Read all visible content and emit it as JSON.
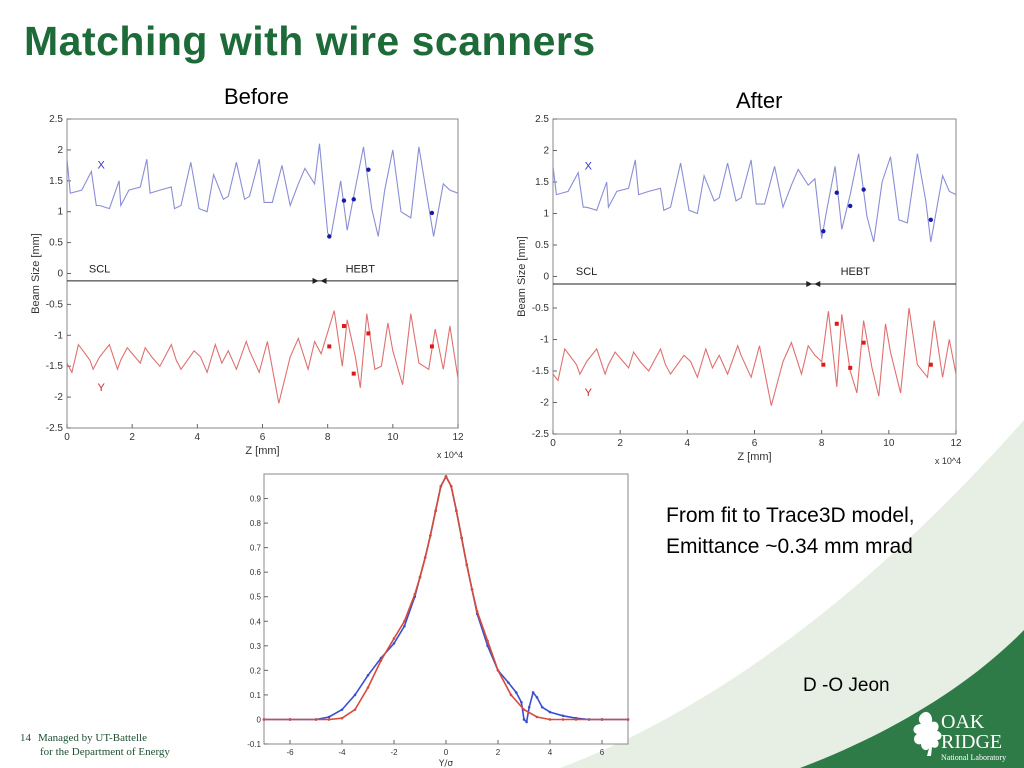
{
  "slide": {
    "title": "Matching with wire scanners",
    "label_before": "Before",
    "label_after": "After",
    "note_line1": "From fit to Trace3D model,",
    "note_line2": "Emittance ~0.34 mm mrad",
    "author": "D -O Jeon",
    "page_number": "14",
    "footer_line1": "Managed by UT-Battelle",
    "footer_line2": "for the Department of Energy",
    "logo_line1": "OAK",
    "logo_line2": "RIDGE",
    "logo_line3": "National Laboratory",
    "accent_color": "#1e6b3a"
  },
  "chart_data": [
    {
      "type": "line",
      "panel": "before",
      "xlabel": "Z [mm]",
      "ylabel": "Beam Size [mm]",
      "x_exponent_label": "x 10^4",
      "xlim": [
        0,
        12
      ],
      "ylim": [
        -2.5,
        2.5
      ],
      "xticks": [
        0,
        2,
        4,
        6,
        8,
        10,
        12
      ],
      "yticks": [
        -2.5,
        -2,
        -1.5,
        -1,
        -0.5,
        0,
        0.5,
        1,
        1.5,
        2,
        2.5
      ],
      "section_labels": [
        {
          "text": "SCL",
          "x": 1.0
        },
        {
          "text": "HEBT",
          "x": 9.0
        }
      ],
      "boundary_x": 7.75,
      "series": [
        {
          "name": "X",
          "color": "#8a8ed6",
          "x": [
            0.0,
            0.1,
            0.45,
            0.75,
            0.9,
            1.0,
            1.3,
            1.6,
            1.65,
            1.9,
            2.25,
            2.45,
            2.55,
            2.85,
            3.2,
            3.3,
            3.5,
            3.8,
            4.05,
            4.3,
            4.5,
            4.8,
            4.95,
            5.2,
            5.45,
            5.6,
            5.9,
            6.05,
            6.3,
            6.6,
            6.85,
            7.1,
            7.3,
            7.6,
            7.75,
            8.0,
            8.1,
            8.4,
            8.6,
            8.8,
            9.1,
            9.35,
            9.55,
            9.75,
            10.0,
            10.25,
            10.55,
            10.8,
            11.05,
            11.25,
            11.55,
            11.75,
            12.0
          ],
          "y": [
            1.85,
            1.3,
            1.35,
            1.65,
            1.1,
            1.1,
            1.05,
            1.5,
            1.1,
            1.35,
            1.4,
            1.85,
            1.3,
            1.35,
            1.4,
            1.05,
            1.1,
            1.8,
            1.05,
            1.0,
            1.6,
            1.2,
            1.25,
            1.8,
            1.2,
            1.25,
            1.85,
            1.15,
            1.15,
            1.75,
            1.1,
            1.45,
            1.7,
            1.45,
            2.1,
            0.65,
            0.6,
            1.5,
            0.7,
            1.25,
            2.05,
            1.05,
            0.6,
            1.35,
            2.0,
            1.0,
            0.9,
            2.05,
            1.25,
            0.6,
            1.45,
            1.35,
            1.3
          ]
        },
        {
          "name": "Y",
          "color": "#e07070",
          "x": [
            0.0,
            0.15,
            0.35,
            0.7,
            0.8,
            1.0,
            1.3,
            1.55,
            1.65,
            1.85,
            2.25,
            2.4,
            2.6,
            2.85,
            3.2,
            3.35,
            3.5,
            3.9,
            4.1,
            4.3,
            4.55,
            4.75,
            4.95,
            5.2,
            5.5,
            5.6,
            5.9,
            6.15,
            6.5,
            6.85,
            7.1,
            7.4,
            7.6,
            7.8,
            8.0,
            8.2,
            8.45,
            8.6,
            8.85,
            9.0,
            9.2,
            9.45,
            9.65,
            9.85,
            10.0,
            10.3,
            10.55,
            10.8,
            11.1,
            11.3,
            11.55,
            11.75,
            12.0
          ],
          "y": [
            -1.45,
            -1.6,
            -1.15,
            -1.4,
            -1.55,
            -1.35,
            -1.15,
            -1.55,
            -1.4,
            -1.2,
            -1.45,
            -1.2,
            -1.35,
            -1.5,
            -1.15,
            -1.4,
            -1.55,
            -1.25,
            -1.35,
            -1.6,
            -1.15,
            -1.45,
            -1.25,
            -1.55,
            -1.1,
            -1.25,
            -1.6,
            -1.1,
            -2.1,
            -1.35,
            -1.05,
            -1.55,
            -1.1,
            -1.3,
            -0.95,
            -0.6,
            -1.5,
            -0.75,
            -1.35,
            -1.85,
            -0.65,
            -1.55,
            -1.5,
            -0.8,
            -1.25,
            -1.8,
            -0.65,
            -1.45,
            -1.55,
            -0.9,
            -1.55,
            -0.85,
            -1.7
          ]
        }
      ],
      "markers": [
        {
          "series": "X",
          "x": [
            8.05,
            8.5,
            8.8,
            9.25,
            11.2
          ],
          "y": [
            0.6,
            1.18,
            1.2,
            1.68,
            0.98
          ]
        },
        {
          "series": "Y",
          "x": [
            8.05,
            8.5,
            8.8,
            9.25,
            11.2
          ],
          "y": [
            -1.18,
            -0.85,
            -1.62,
            -0.97,
            -1.18
          ]
        }
      ]
    },
    {
      "type": "line",
      "panel": "after",
      "xlabel": "Z [mm]",
      "ylabel": "Beam Size [mm]",
      "x_exponent_label": "x 10^4",
      "xlim": [
        0,
        12
      ],
      "ylim": [
        -2.5,
        2.5
      ],
      "xticks": [
        0,
        2,
        4,
        6,
        8,
        10,
        12
      ],
      "yticks": [
        -2.5,
        -2,
        -1.5,
        -1,
        -0.5,
        0,
        0.5,
        1,
        1.5,
        2,
        2.5
      ],
      "section_labels": [
        {
          "text": "SCL",
          "x": 1.0
        },
        {
          "text": "HEBT",
          "x": 9.0
        }
      ],
      "boundary_x": 7.75,
      "series": [
        {
          "name": "X",
          "color": "#8a8ed6",
          "x": [
            0.0,
            0.1,
            0.45,
            0.75,
            0.9,
            1.0,
            1.3,
            1.6,
            1.65,
            1.9,
            2.25,
            2.45,
            2.55,
            2.85,
            3.2,
            3.3,
            3.5,
            3.8,
            4.05,
            4.3,
            4.5,
            4.8,
            4.95,
            5.2,
            5.45,
            5.6,
            5.9,
            6.05,
            6.3,
            6.6,
            6.85,
            7.1,
            7.3,
            7.6,
            7.8,
            8.0,
            8.15,
            8.4,
            8.6,
            8.85,
            9.1,
            9.35,
            9.55,
            9.8,
            10.05,
            10.3,
            10.55,
            10.85,
            11.1,
            11.25,
            11.6,
            11.8,
            12.0
          ],
          "y": [
            1.75,
            1.3,
            1.35,
            1.65,
            1.1,
            1.1,
            1.05,
            1.5,
            1.1,
            1.35,
            1.4,
            1.85,
            1.3,
            1.35,
            1.4,
            1.05,
            1.1,
            1.8,
            1.05,
            1.0,
            1.6,
            1.2,
            1.25,
            1.8,
            1.2,
            1.25,
            1.85,
            1.15,
            1.15,
            1.75,
            1.1,
            1.45,
            1.7,
            1.45,
            1.55,
            0.6,
            1.05,
            1.75,
            0.75,
            1.3,
            1.95,
            0.95,
            0.55,
            1.5,
            1.9,
            0.9,
            0.85,
            1.95,
            1.2,
            0.55,
            1.6,
            1.35,
            1.3
          ]
        },
        {
          "name": "Y",
          "color": "#e07070",
          "x": [
            0.0,
            0.15,
            0.35,
            0.7,
            0.8,
            1.0,
            1.3,
            1.55,
            1.65,
            1.85,
            2.25,
            2.4,
            2.6,
            2.85,
            3.2,
            3.35,
            3.5,
            3.9,
            4.1,
            4.3,
            4.55,
            4.75,
            4.95,
            5.2,
            5.5,
            5.6,
            5.9,
            6.15,
            6.5,
            6.85,
            7.1,
            7.4,
            7.6,
            7.8,
            8.0,
            8.2,
            8.45,
            8.6,
            8.85,
            9.05,
            9.25,
            9.5,
            9.7,
            9.9,
            10.05,
            10.35,
            10.6,
            10.85,
            11.15,
            11.35,
            11.6,
            11.8,
            12.0
          ],
          "y": [
            -1.55,
            -1.65,
            -1.15,
            -1.4,
            -1.55,
            -1.35,
            -1.15,
            -1.55,
            -1.4,
            -1.2,
            -1.45,
            -1.2,
            -1.35,
            -1.5,
            -1.15,
            -1.4,
            -1.55,
            -1.25,
            -1.35,
            -1.6,
            -1.15,
            -1.45,
            -1.25,
            -1.55,
            -1.1,
            -1.25,
            -1.6,
            -1.1,
            -2.05,
            -1.35,
            -1.05,
            -1.55,
            -1.1,
            -1.25,
            -1.35,
            -0.55,
            -1.75,
            -0.6,
            -1.5,
            -1.85,
            -0.7,
            -1.45,
            -1.9,
            -0.75,
            -1.2,
            -1.85,
            -0.5,
            -1.4,
            -1.6,
            -0.7,
            -1.6,
            -1.0,
            -1.55
          ]
        }
      ],
      "markers": [
        {
          "series": "X",
          "x": [
            8.05,
            8.45,
            8.85,
            9.25,
            11.25
          ],
          "y": [
            0.72,
            1.33,
            1.12,
            1.38,
            0.9
          ]
        },
        {
          "series": "Y",
          "x": [
            8.05,
            8.45,
            8.85,
            9.25,
            11.25
          ],
          "y": [
            -1.4,
            -0.75,
            -1.45,
            -1.05,
            -1.4
          ]
        }
      ]
    },
    {
      "type": "line",
      "panel": "profile",
      "xlabel": "Y/σ",
      "ylabel": "",
      "xlim": [
        -7,
        7
      ],
      "ylim": [
        -0.1,
        1.0
      ],
      "xticks": [
        -6,
        -4,
        -2,
        0,
        2,
        4,
        6
      ],
      "yticks": [
        -0.1,
        0,
        0.1,
        0.2,
        0.3,
        0.4,
        0.5,
        0.6,
        0.7,
        0.8,
        0.9
      ],
      "series": [
        {
          "name": "",
          "color": "#3a4fd0",
          "x": [
            -7,
            -6,
            -5,
            -4.5,
            -4.0,
            -3.5,
            -3.0,
            -2.5,
            -2.0,
            -1.6,
            -1.2,
            -1.0,
            -0.8,
            -0.6,
            -0.4,
            -0.2,
            0.0,
            0.2,
            0.4,
            0.6,
            0.8,
            1.0,
            1.2,
            1.6,
            2.0,
            2.4,
            2.7,
            2.9,
            3.0,
            3.1,
            3.2,
            3.35,
            3.5,
            3.7,
            4.0,
            4.5,
            5.0,
            5.5,
            6.0,
            7.0
          ],
          "y": [
            0.0,
            0.0,
            0.0,
            0.01,
            0.04,
            0.1,
            0.18,
            0.25,
            0.31,
            0.38,
            0.5,
            0.58,
            0.66,
            0.75,
            0.85,
            0.95,
            0.99,
            0.95,
            0.85,
            0.74,
            0.63,
            0.53,
            0.43,
            0.3,
            0.2,
            0.15,
            0.11,
            0.07,
            0.0,
            -0.01,
            0.05,
            0.11,
            0.09,
            0.05,
            0.03,
            0.015,
            0.005,
            0.0,
            0.0,
            0.0
          ]
        },
        {
          "name": "",
          "color": "#d84a3a",
          "x": [
            -7,
            -6,
            -5,
            -4.5,
            -4.0,
            -3.5,
            -3.0,
            -2.5,
            -2.0,
            -1.6,
            -1.2,
            -1.0,
            -0.8,
            -0.6,
            -0.4,
            -0.2,
            0.0,
            0.2,
            0.4,
            0.6,
            0.8,
            1.0,
            1.2,
            1.6,
            2.0,
            2.5,
            3.0,
            3.5,
            4.0,
            4.5,
            5.0,
            6.0,
            7.0
          ],
          "y": [
            0.0,
            0.0,
            0.0,
            0.0,
            0.005,
            0.04,
            0.13,
            0.24,
            0.33,
            0.4,
            0.51,
            0.58,
            0.66,
            0.75,
            0.85,
            0.95,
            0.99,
            0.95,
            0.85,
            0.74,
            0.63,
            0.53,
            0.44,
            0.32,
            0.2,
            0.1,
            0.04,
            0.01,
            0.0,
            0.0,
            0.0,
            0.0,
            0.0
          ]
        }
      ]
    }
  ]
}
